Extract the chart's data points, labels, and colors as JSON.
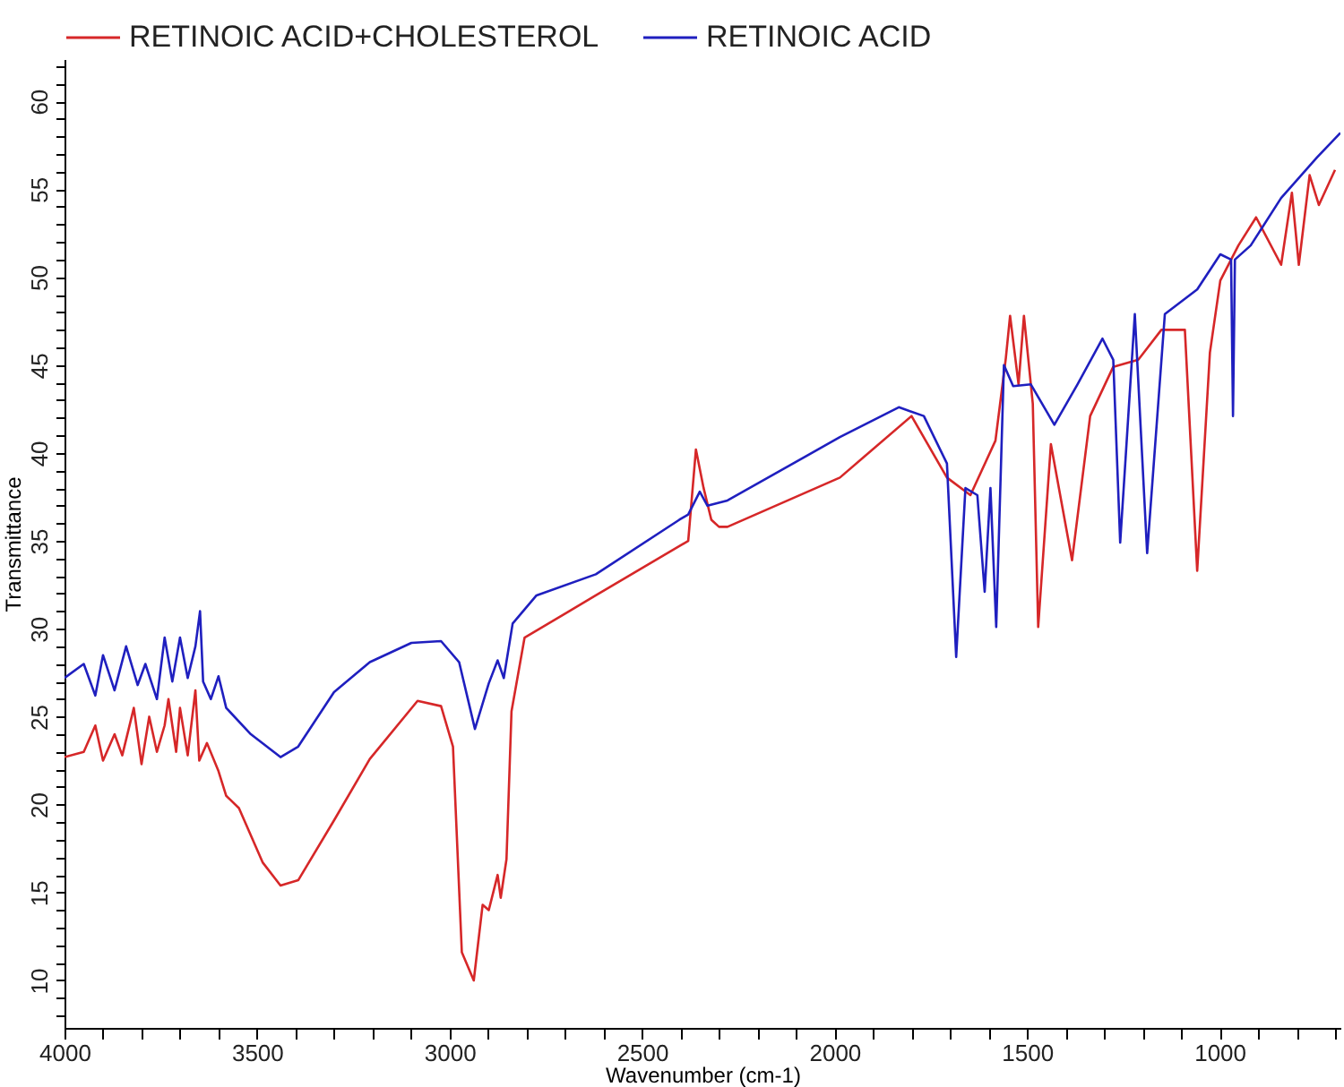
{
  "chart_data": {
    "type": "line",
    "xlabel": "Wavenumber (cm-1)",
    "ylabel": "Transmittance",
    "legend": "top",
    "grid": false,
    "xlim": [
      4000,
      686
    ],
    "ylim": [
      7.3,
      62.4
    ],
    "xticks": [
      4000,
      {
        "value": 3900,
        "label": null
      },
      {
        "value": 3800,
        "label": null
      },
      {
        "value": 3700,
        "label": null
      },
      {
        "value": 3600,
        "label": null
      },
      3500,
      {
        "value": 3400,
        "label": null
      },
      {
        "value": 3300,
        "label": null
      },
      {
        "value": 3200,
        "label": null
      },
      {
        "value": 3100,
        "label": null
      },
      3000,
      {
        "value": 2900,
        "label": null
      },
      {
        "value": 2800,
        "label": null
      },
      {
        "value": 2700,
        "label": null
      },
      {
        "value": 2600,
        "label": null
      },
      2500,
      {
        "value": 2400,
        "label": null
      },
      {
        "value": 2300,
        "label": null
      },
      {
        "value": 2200,
        "label": null
      },
      {
        "value": 2100,
        "label": null
      },
      2000,
      {
        "value": 1900,
        "label": null
      },
      {
        "value": 1800,
        "label": null
      },
      {
        "value": 1700,
        "label": null
      },
      {
        "value": 1600,
        "label": null
      },
      1500,
      {
        "value": 1400,
        "label": null
      },
      {
        "value": 1300,
        "label": null
      },
      {
        "value": 1200,
        "label": null
      },
      {
        "value": 1100,
        "label": null
      },
      1000,
      {
        "value": 900,
        "label": null
      },
      {
        "value": 800,
        "label": null
      },
      {
        "value": 700,
        "label": null
      }
    ],
    "yticks": [
      {
        "value": 8,
        "label": null
      },
      {
        "value": 9,
        "label": null
      },
      10,
      {
        "value": 11,
        "label": null
      },
      {
        "value": 12,
        "label": null
      },
      {
        "value": 13,
        "label": null
      },
      {
        "value": 14,
        "label": null
      },
      15,
      {
        "value": 16,
        "label": null
      },
      {
        "value": 17,
        "label": null
      },
      {
        "value": 18,
        "label": null
      },
      {
        "value": 19,
        "label": null
      },
      20,
      {
        "value": 21,
        "label": null
      },
      {
        "value": 22,
        "label": null
      },
      {
        "value": 23,
        "label": null
      },
      {
        "value": 24,
        "label": null
      },
      25,
      {
        "value": 26,
        "label": null
      },
      {
        "value": 27,
        "label": null
      },
      {
        "value": 28,
        "label": null
      },
      {
        "value": 29,
        "label": null
      },
      30,
      {
        "value": 31,
        "label": null
      },
      {
        "value": 32,
        "label": null
      },
      {
        "value": 33,
        "label": null
      },
      {
        "value": 34,
        "label": null
      },
      35,
      {
        "value": 36,
        "label": null
      },
      {
        "value": 37,
        "label": null
      },
      {
        "value": 38,
        "label": null
      },
      {
        "value": 39,
        "label": null
      },
      40,
      {
        "value": 41,
        "label": null
      },
      {
        "value": 42,
        "label": null
      },
      {
        "value": 43,
        "label": null
      },
      {
        "value": 44,
        "label": null
      },
      45,
      {
        "value": 46,
        "label": null
      },
      {
        "value": 47,
        "label": null
      },
      {
        "value": 48,
        "label": null
      },
      {
        "value": 49,
        "label": null
      },
      50,
      {
        "value": 51,
        "label": null
      },
      {
        "value": 52,
        "label": null
      },
      {
        "value": 53,
        "label": null
      },
      {
        "value": 54,
        "label": null
      },
      55,
      {
        "value": 56,
        "label": null
      },
      {
        "value": 57,
        "label": null
      },
      {
        "value": 58,
        "label": null
      },
      {
        "value": 59,
        "label": null
      },
      60,
      {
        "value": 61,
        "label": null
      },
      {
        "value": 62,
        "label": null
      }
    ],
    "series": [
      {
        "name": "RETINOIC ACID+CHOLESTEROL",
        "color": "#d62728",
        "x": [
          4000,
          3950,
          3920,
          3900,
          3870,
          3850,
          3820,
          3800,
          3780,
          3760,
          3740,
          3730,
          3710,
          3700,
          3680,
          3660,
          3650,
          3630,
          3600,
          3580,
          3547,
          3485,
          3439,
          3393,
          3300,
          3207,
          3083,
          3022,
          2991,
          2968,
          2937,
          2914,
          2898,
          2875,
          2867,
          2852,
          2839,
          2805,
          2697,
          2620,
          2403,
          2380,
          2360,
          2340,
          2320,
          2300,
          2278,
          1986,
          1800,
          1708,
          1647,
          1582,
          1555,
          1544,
          1522,
          1508,
          1485,
          1471,
          1438,
          1383,
          1336,
          1276,
          1211,
          1151,
          1090,
          1058,
          1025,
          998,
          951,
          905,
          840,
          812,
          794,
          766,
          742,
          700
        ],
        "values": [
          22.7,
          23,
          24.5,
          22.5,
          24,
          22.8,
          25.5,
          22.3,
          25,
          23,
          24.5,
          26,
          23,
          25.5,
          22.8,
          26.5,
          22.5,
          23.5,
          21.9,
          20.5,
          19.8,
          16.7,
          15.4,
          15.7,
          19.1,
          22.6,
          25.9,
          25.6,
          23.3,
          11.6,
          10,
          14.3,
          14,
          16,
          14.7,
          16.9,
          25.3,
          29.5,
          30.9,
          31.9,
          34.7,
          35,
          40.2,
          38,
          36.2,
          35.8,
          35.8,
          38.6,
          42.1,
          38.6,
          37.6,
          40.7,
          45.4,
          47.8,
          43.9,
          47.8,
          42.8,
          30.1,
          40.5,
          33.9,
          42.1,
          44.9,
          45.3,
          47,
          47,
          33.3,
          45.7,
          49.8,
          51.8,
          53.4,
          50.7,
          54.8,
          50.7,
          55.8,
          54.1,
          56.1
        ]
      },
      {
        "name": "RETINOIC ACID",
        "color": "#1f1fbf",
        "x": [
          4000,
          3950,
          3920,
          3900,
          3870,
          3840,
          3810,
          3790,
          3760,
          3740,
          3720,
          3700,
          3680,
          3660,
          3648,
          3640,
          3620,
          3600,
          3580,
          3516,
          3439,
          3393,
          3300,
          3207,
          3099,
          3022,
          2975,
          2934,
          2898,
          2875,
          2859,
          2836,
          2774,
          2620,
          2403,
          2380,
          2350,
          2330,
          2278,
          1986,
          1833,
          1768,
          1708,
          1684,
          1660,
          1629,
          1610,
          1595,
          1580,
          1560,
          1536,
          1490,
          1429,
          1369,
          1304,
          1276,
          1258,
          1220,
          1188,
          1142,
          1058,
          998,
          970,
          965,
          960,
          919,
          840,
          747,
          686
        ],
        "values": [
          27.2,
          28,
          26.2,
          28.5,
          26.5,
          29,
          26.8,
          28,
          26,
          29.5,
          27,
          29.5,
          27.2,
          29,
          31,
          27,
          26,
          27.3,
          25.5,
          24,
          22.7,
          23.3,
          26.4,
          28.1,
          29.2,
          29.3,
          28.1,
          24.3,
          26.9,
          28.2,
          27.2,
          30.3,
          31.9,
          33.1,
          36.2,
          36.5,
          37.8,
          37,
          37.3,
          40.9,
          42.6,
          42.1,
          39.4,
          28.4,
          38,
          37.6,
          32.1,
          38,
          30.1,
          45,
          43.8,
          43.9,
          41.6,
          43.9,
          46.5,
          45.3,
          34.9,
          47.9,
          34.3,
          47.9,
          49.3,
          51.3,
          51,
          42.1,
          51,
          51.8,
          54.5,
          56.8,
          58.2
        ]
      }
    ]
  }
}
